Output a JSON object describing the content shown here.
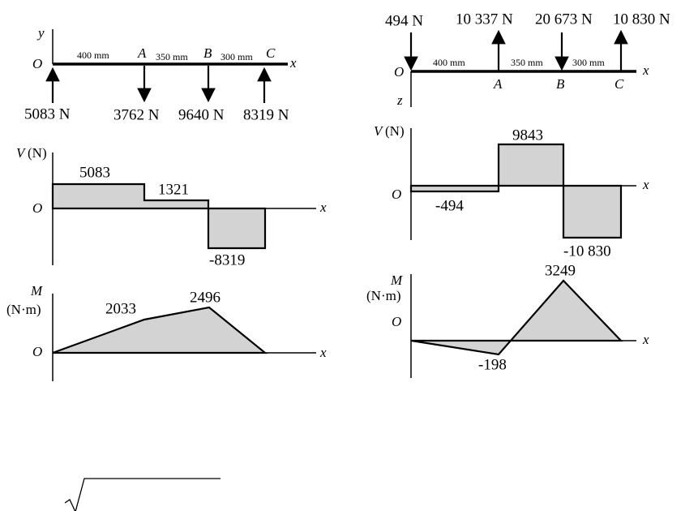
{
  "left": {
    "beam": {
      "axis_y": "y",
      "origin": "O",
      "axis_x": "x",
      "points": [
        "A",
        "B",
        "C"
      ],
      "spans": [
        "400 mm",
        "350 mm",
        "300 mm"
      ],
      "loads": [
        "5083 N",
        "3762 N",
        "9640 N",
        "8319 N"
      ]
    },
    "shear": {
      "axis_label": "V",
      "unit": "(N)",
      "origin": "O",
      "axis_x": "x",
      "values": [
        "5083",
        "1321",
        "-8319"
      ]
    },
    "moment": {
      "axis_label": "M",
      "unit": "(N·m)",
      "origin": "O",
      "axis_x": "x",
      "values": [
        "2033",
        "2496"
      ]
    }
  },
  "right": {
    "beam": {
      "axis_z": "z",
      "origin": "O",
      "axis_x": "x",
      "points": [
        "A",
        "B",
        "C"
      ],
      "spans": [
        "400 mm",
        "350 mm",
        "300 mm"
      ],
      "loads": [
        "494 N",
        "10 337 N",
        "20 673 N",
        "10 830 N"
      ]
    },
    "shear": {
      "axis_label": "V",
      "unit": "(N)",
      "origin": "O",
      "axis_x": "x",
      "values": [
        "9843",
        "-494",
        "-10 830"
      ]
    },
    "moment": {
      "axis_label": "M",
      "unit": "(N·m)",
      "origin": "O",
      "axis_x": "x",
      "values": [
        "3249",
        "-198"
      ]
    }
  }
}
